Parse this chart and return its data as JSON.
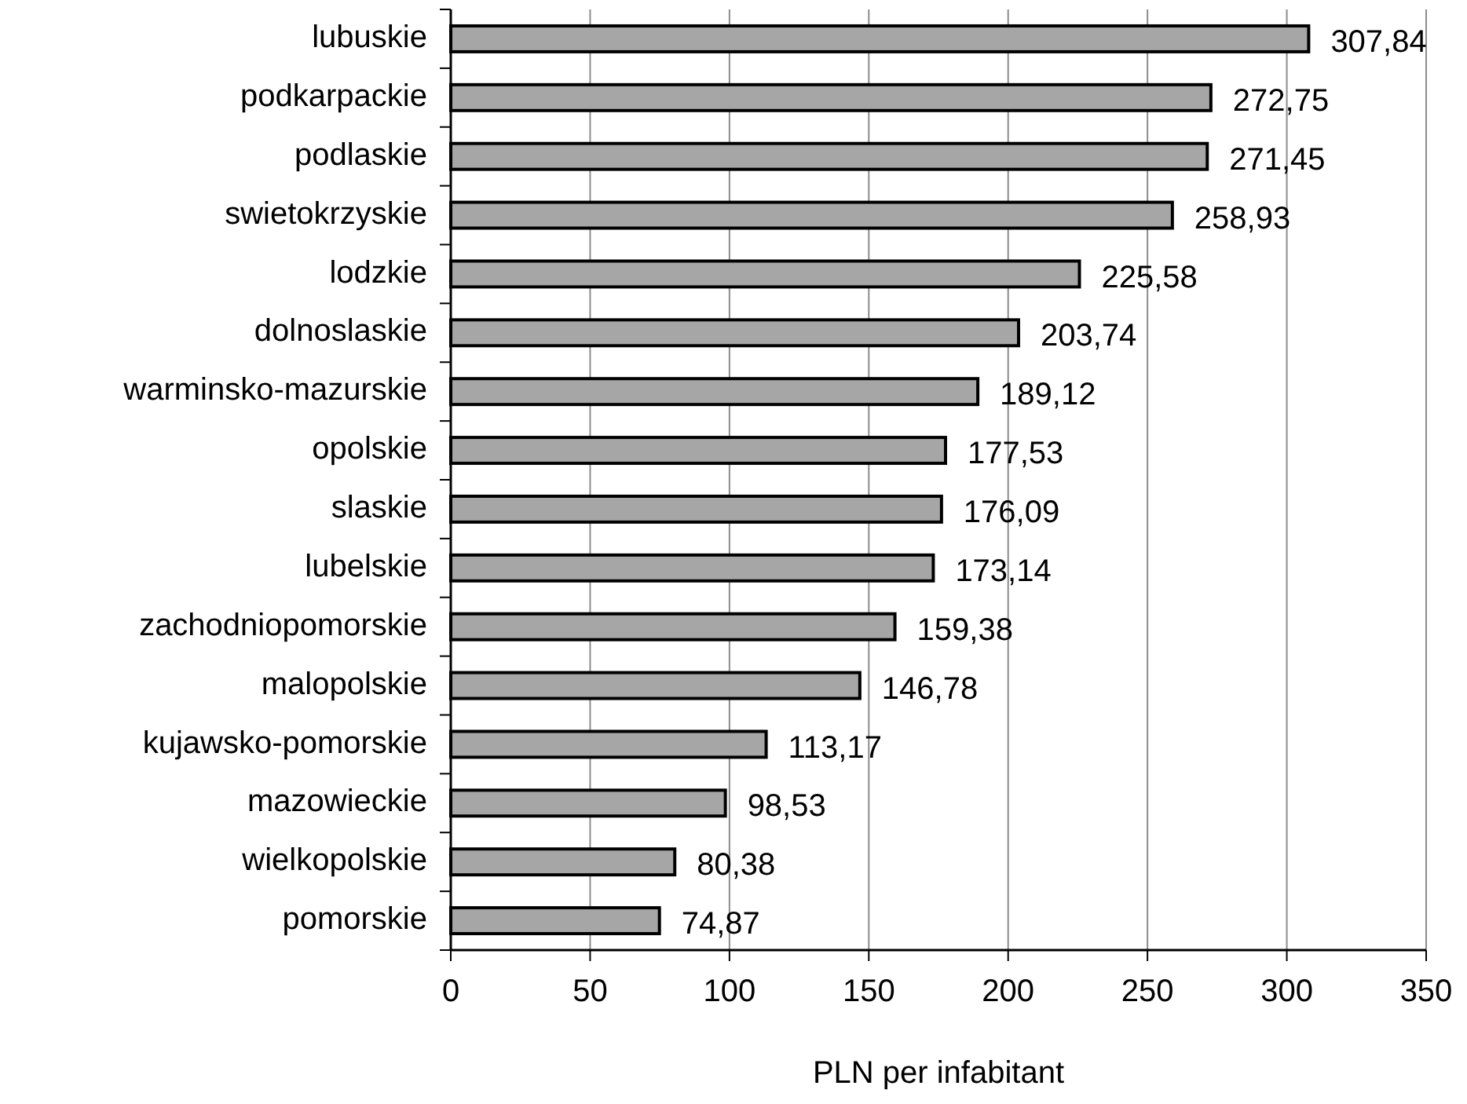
{
  "chart_data": {
    "type": "bar",
    "orientation": "horizontal",
    "xlabel": "PLN per infabitant",
    "categories": [
      "lubuskie",
      "podkarpackie",
      "podlaskie",
      "swietokrzyskie",
      "lodzkie",
      "dolnoslaskie",
      "warminsko-mazurskie",
      "opolskie",
      "slaskie",
      "lubelskie",
      "zachodniopomorskie",
      "malopolskie",
      "kujawsko-pomorskie",
      "mazowieckie",
      "wielkopolskie",
      "pomorskie"
    ],
    "values": [
      307.84,
      272.75,
      271.45,
      258.93,
      225.58,
      203.74,
      189.12,
      177.53,
      176.09,
      173.14,
      159.38,
      146.78,
      113.17,
      98.53,
      80.38,
      74.87
    ],
    "value_labels": [
      "307,84",
      "272,75",
      "271,45",
      "258,93",
      "225,58",
      "203,74",
      "189,12",
      "177,53",
      "176,09",
      "173,14",
      "159,38",
      "146,78",
      "113,17",
      "98,53",
      "80,38",
      "74,87"
    ],
    "color": "#a6a6a6",
    "xlim": [
      0,
      350
    ],
    "xticks": [
      0,
      50,
      100,
      150,
      200,
      250,
      300,
      350
    ],
    "grid": "x"
  }
}
